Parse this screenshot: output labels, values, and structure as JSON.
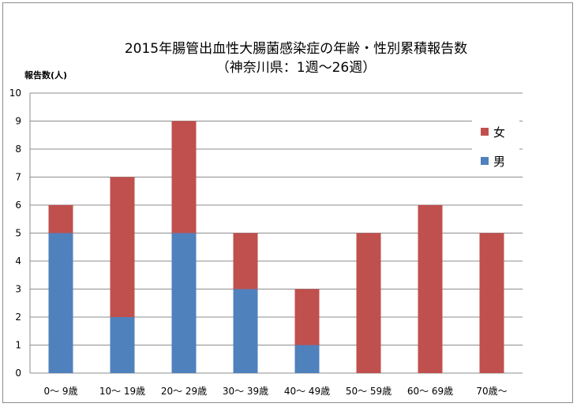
{
  "chart_data": {
    "type": "bar",
    "stacked": true,
    "title": "2015年腸管出血性大腸菌感染症の年齢・性別累積報告数",
    "subtitle": "（神奈川県：1週～26週）",
    "ylabel": "報告数(人)",
    "xlabel": "",
    "ylim": [
      0,
      10
    ],
    "yticks": [
      "0",
      "1",
      "2",
      "3",
      "4",
      "5",
      "6",
      "7",
      "8",
      "9",
      "10"
    ],
    "grid": true,
    "legend": "right",
    "categories": [
      "0～ 9歳",
      "10～ 19歳",
      "20～ 29歳",
      "30～ 39歳",
      "40～ 49歳",
      "50～ 59歳",
      "60～ 69歳",
      "70歳～"
    ],
    "series": [
      {
        "name": "男",
        "color": "#4f81bd",
        "values": [
          5,
          2,
          5,
          3,
          1,
          0,
          0,
          0
        ]
      },
      {
        "name": "女",
        "color": "#c0504d",
        "values": [
          1,
          5,
          4,
          2,
          2,
          5,
          6,
          5
        ]
      }
    ]
  }
}
